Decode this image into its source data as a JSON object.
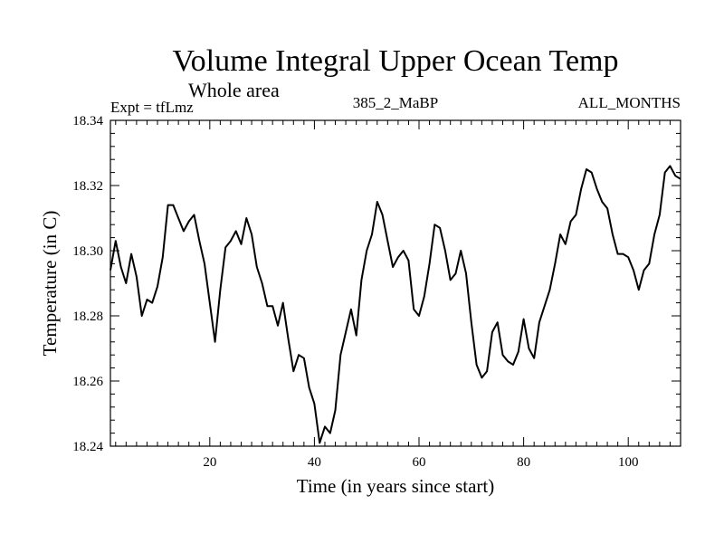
{
  "chart_data": {
    "type": "line",
    "title": "Volume Integral Upper Ocean Temp",
    "subtitle": "Whole area",
    "expt_label": "Expt = tfLmz",
    "run_label": "385_2_MaBP",
    "months_label": "ALL_MONTHS",
    "xlabel": "Time (in years since start)",
    "ylabel": "Temperature (in C)",
    "xlim": [
      1,
      110
    ],
    "ylim": [
      18.24,
      18.34
    ],
    "x_major_ticks": [
      20,
      40,
      60,
      80,
      100
    ],
    "x_tick_labels": [
      "20",
      "40",
      "60",
      "80",
      "100"
    ],
    "y_major_ticks": [
      18.24,
      18.26,
      18.28,
      18.3,
      18.32,
      18.34
    ],
    "y_tick_labels": [
      "18.24",
      "18.26",
      "18.28",
      "18.30",
      "18.32",
      "18.34"
    ],
    "line_color": "#000000",
    "series": [
      {
        "name": "tfLmz",
        "x": [
          1,
          2,
          3,
          4,
          5,
          6,
          7,
          8,
          9,
          10,
          11,
          12,
          13,
          14,
          15,
          16,
          17,
          18,
          19,
          20,
          21,
          22,
          23,
          24,
          25,
          26,
          27,
          28,
          29,
          30,
          31,
          32,
          33,
          34,
          35,
          36,
          37,
          38,
          39,
          40,
          41,
          42,
          43,
          44,
          45,
          46,
          47,
          48,
          49,
          50,
          51,
          52,
          53,
          54,
          55,
          56,
          57,
          58,
          59,
          60,
          61,
          62,
          63,
          64,
          65,
          66,
          67,
          68,
          69,
          70,
          71,
          72,
          73,
          74,
          75,
          76,
          77,
          78,
          79,
          80,
          81,
          82,
          83,
          84,
          85,
          86,
          87,
          88,
          89,
          90,
          91,
          92,
          93,
          94,
          95,
          96,
          97,
          98,
          99,
          100,
          101,
          102,
          103,
          104,
          105,
          106,
          107,
          108,
          109,
          110
        ],
        "values": [
          18.294,
          18.303,
          18.295,
          18.29,
          18.299,
          18.292,
          18.28,
          18.285,
          18.284,
          18.289,
          18.298,
          18.314,
          18.314,
          18.31,
          18.306,
          18.309,
          18.311,
          18.303,
          18.296,
          18.284,
          18.272,
          18.288,
          18.301,
          18.303,
          18.306,
          18.302,
          18.31,
          18.305,
          18.295,
          18.29,
          18.283,
          18.283,
          18.277,
          18.284,
          18.273,
          18.263,
          18.268,
          18.267,
          18.258,
          18.253,
          18.241,
          18.246,
          18.244,
          18.251,
          18.268,
          18.275,
          18.282,
          18.274,
          18.291,
          18.3,
          18.305,
          18.315,
          18.311,
          18.303,
          18.295,
          18.298,
          18.3,
          18.297,
          18.282,
          18.28,
          18.286,
          18.296,
          18.308,
          18.307,
          18.3,
          18.291,
          18.293,
          18.3,
          18.293,
          18.278,
          18.265,
          18.261,
          18.263,
          18.275,
          18.278,
          18.268,
          18.266,
          18.265,
          18.269,
          18.279,
          18.27,
          18.267,
          18.278,
          18.283,
          18.288,
          18.296,
          18.305,
          18.302,
          18.309,
          18.311,
          18.319,
          18.325,
          18.324,
          18.319,
          18.315,
          18.313,
          18.305,
          18.299,
          18.299,
          18.298,
          18.294,
          18.288,
          18.294,
          18.296,
          18.305,
          18.311,
          18.324,
          18.326,
          18.323,
          18.322
        ]
      }
    ]
  }
}
